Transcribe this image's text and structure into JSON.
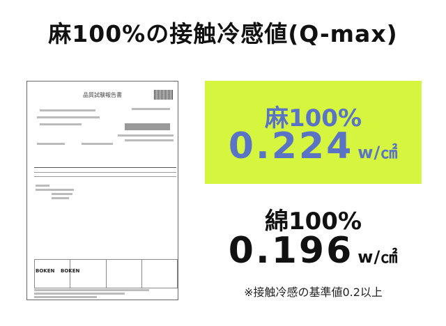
{
  "title": "麻100%の接触冷感値(Q-max)",
  "document": {
    "heading": "品質試験報告書",
    "logos": [
      "BOKEN",
      "BOKEN"
    ]
  },
  "linen": {
    "label": "麻100%",
    "value": "0.224",
    "unit": "w/㎠",
    "accent_color": "#d5f53f",
    "text_color": "#5a73c4"
  },
  "cotton": {
    "label": "綿100%",
    "value": "0.196",
    "unit": "w/㎠"
  },
  "note": "※接触冷感の基準値0.2以上"
}
